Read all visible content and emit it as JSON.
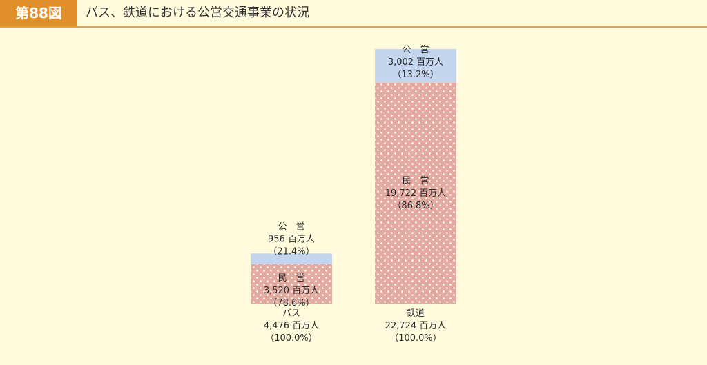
{
  "header": {
    "figure_number": "第88図",
    "title": "バス、鉄道における公営交通事業の状況"
  },
  "colors": {
    "public": "#c4d5ee",
    "private": "#e3aaa0",
    "private_dot": "#ffffff"
  },
  "chart_data": {
    "type": "bar",
    "stacked": true,
    "unit": "百万人",
    "categories": [
      "バス",
      "鉄道"
    ],
    "bars": [
      {
        "category_label": "バス",
        "total_label": "4,476 百万人",
        "total_pct": "（100.0%）",
        "total": 4476,
        "segments": [
          {
            "name_label": "民　営",
            "value": 3520,
            "value_label": "3,520 百万人",
            "pct_label": "（78.6%）"
          },
          {
            "name_label": "公　営",
            "value": 956,
            "value_label": "956 百万人",
            "pct_label": "（21.4%）"
          }
        ]
      },
      {
        "category_label": "鉄道",
        "total_label": "22,724 百万人",
        "total_pct": "（100.0%）",
        "total": 22724,
        "segments": [
          {
            "name_label": "民　営",
            "value": 19722,
            "value_label": "19,722 百万人",
            "pct_label": "（86.8%）"
          },
          {
            "name_label": "公　営",
            "value": 3002,
            "value_label": "3,002 百万人",
            "pct_label": "（13.2%）"
          }
        ]
      }
    ]
  }
}
